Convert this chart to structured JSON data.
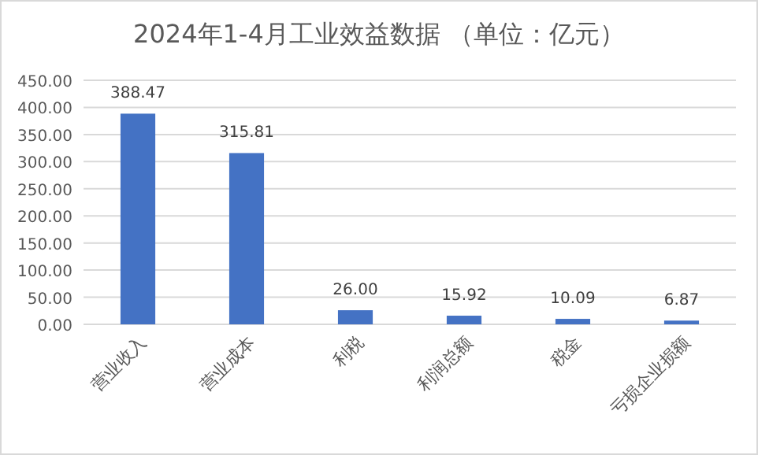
{
  "chart_data": {
    "type": "bar",
    "title": "2024年1-4月工业效益数据 （单位：亿元）",
    "categories": [
      "营业收入",
      "营业成本",
      "利税",
      "利润总额",
      "税金",
      "亏损企业损额"
    ],
    "values": [
      388.47,
      315.81,
      26.0,
      15.92,
      10.09,
      6.87
    ],
    "value_labels": [
      "388.47",
      "315.81",
      "26.00",
      "15.92",
      "10.09",
      "6.87"
    ],
    "color": "#4472c4",
    "ylim": [
      0,
      450
    ],
    "yticks": [
      {
        "value": 0,
        "label": "0.00"
      },
      {
        "value": 50,
        "label": "50.00"
      },
      {
        "value": 100,
        "label": "100.00"
      },
      {
        "value": 150,
        "label": "150.00"
      },
      {
        "value": 200,
        "label": "200.00"
      },
      {
        "value": 250,
        "label": "250.00"
      },
      {
        "value": 300,
        "label": "300.00"
      },
      {
        "value": 350,
        "label": "350.00"
      },
      {
        "value": 400,
        "label": "400.00"
      },
      {
        "value": 450,
        "label": "450.00"
      }
    ],
    "grid": "y"
  }
}
